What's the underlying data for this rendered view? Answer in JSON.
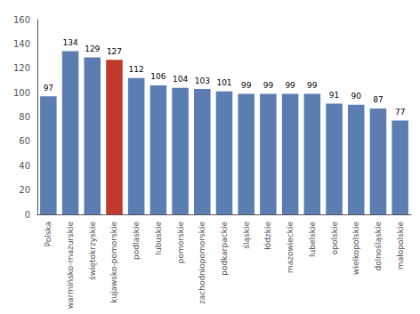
{
  "chart_data": {
    "type": "bar",
    "categories": [
      "Polska",
      "warmińsko-mazurskie",
      "świętokrzyskie",
      "kujawsko-pomorskie",
      "podlaskie",
      "lubuskie",
      "pomorskie",
      "zachodniopomorskie",
      "podkarpackie",
      "śląskie",
      "łódzkie",
      "mazowieckie",
      "lubelskie",
      "opolskie",
      "wielkopolskie",
      "dolnośląskie",
      "małopolskie"
    ],
    "values": [
      97,
      134,
      129,
      127,
      112,
      106,
      104,
      103,
      101,
      99,
      99,
      99,
      99,
      91,
      90,
      87,
      77
    ],
    "colors": [
      "#5b7db1",
      "#5b7db1",
      "#5b7db1",
      "#c0392b",
      "#5b7db1",
      "#5b7db1",
      "#5b7db1",
      "#5b7db1",
      "#5b7db1",
      "#5b7db1",
      "#5b7db1",
      "#5b7db1",
      "#5b7db1",
      "#5b7db1",
      "#5b7db1",
      "#5b7db1",
      "#5b7db1"
    ],
    "ylim": [
      0,
      160
    ],
    "yticks": [
      0,
      20,
      40,
      60,
      80,
      100,
      120,
      140,
      160
    ],
    "grid": false,
    "data_labels": true
  }
}
